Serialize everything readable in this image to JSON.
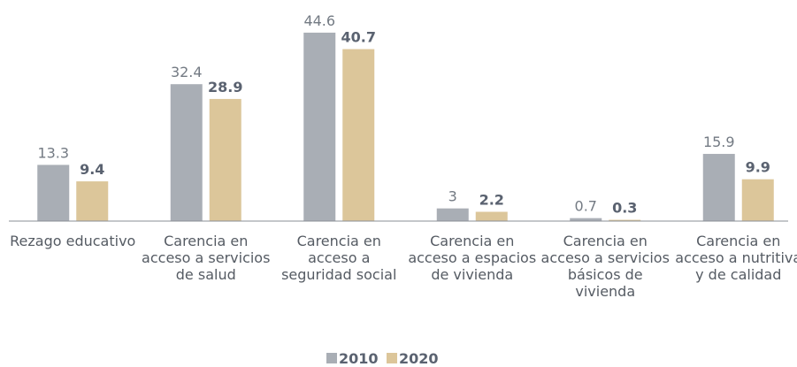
{
  "chart_data": {
    "type": "bar",
    "categories": [
      "Rezago educativo",
      "Carencia en acceso a servicios de salud",
      "Carencia en acceso a seguridad social",
      "Carencia en acceso a espacios de vivienda",
      "Carencia en acceso a servicios básicos de vivienda",
      "Carencia en acceso a nutritiva y de calidad"
    ],
    "series": [
      {
        "name": "2010",
        "color": "#a9aeb5",
        "values": [
          13.3,
          32.4,
          44.6,
          3,
          0.7,
          15.9
        ]
      },
      {
        "name": "2020",
        "color": "#dcc69a",
        "values": [
          9.4,
          28.9,
          40.7,
          2.2,
          0.3,
          9.9
        ]
      }
    ],
    "ylim": [
      0,
      45
    ],
    "legend": "bottom"
  }
}
